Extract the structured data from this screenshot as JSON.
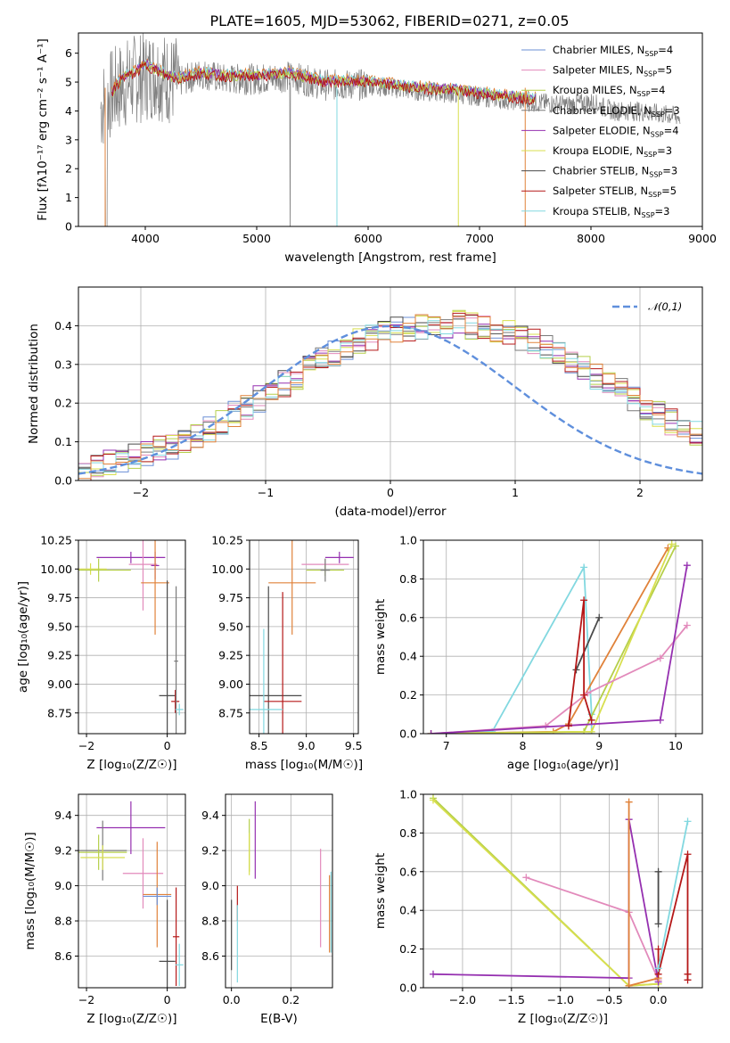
{
  "figure": {
    "title": "PLATE=1605, MJD=53062, FIBERID=0271, z=0.05"
  },
  "colors": {
    "Chabrier MILES": "#6b8fd6",
    "Salpeter MILES": "#e28abb",
    "Kroupa MILES": "#b5cf4a",
    "Chabrier ELODIE": "#7a7a7a",
    "Salpeter ELODIE": "#9530b0",
    "Kroupa ELODIE": "#d8df4f",
    "Chabrier STELIB": "#4a4a4a",
    "Salpeter STELIB": "#b51818",
    "Kroupa STELIB": "#82d8e0",
    "data": "#808080",
    "model_orange": "#e0823a",
    "gaussian": "#5f8fdc"
  },
  "chart_data": [
    {
      "id": "spectrum",
      "type": "line",
      "xlabel": "wavelength [Angstrom, rest frame]",
      "ylabel": "Flux [fλ10⁻¹⁷ erg cm⁻² s⁻¹ A⁻¹]",
      "xlim": [
        3400,
        9000
      ],
      "ylim": [
        0,
        6.7
      ],
      "xticks": [
        4000,
        5000,
        6000,
        7000,
        8000,
        9000
      ],
      "yticks": [
        0,
        1,
        2,
        3,
        4,
        5,
        6
      ],
      "data_envelope": {
        "x": [
          3600,
          3700,
          3800,
          3900,
          4000,
          4100,
          4200,
          4300,
          4500,
          4700,
          5000,
          5300,
          5600,
          6000,
          6400,
          6800,
          7200,
          7500,
          7800,
          8000,
          8200,
          8400,
          8600,
          8800
        ],
        "y": [
          4.1,
          4.6,
          4.9,
          5.1,
          5.2,
          5.3,
          5.1,
          5.0,
          5.3,
          5.1,
          5.1,
          5.2,
          4.9,
          4.9,
          4.7,
          4.6,
          4.4,
          4.3,
          4.2,
          4.3,
          4.0,
          4.0,
          3.9,
          3.8
        ]
      },
      "model_line": {
        "x": [
          3700,
          3800,
          3900,
          4000,
          4100,
          4200,
          4300,
          4500,
          4700,
          5000,
          5300,
          5600,
          6000,
          6400,
          6800,
          7200,
          7500
        ],
        "y": [
          4.7,
          5.3,
          5.4,
          5.7,
          5.5,
          5.3,
          5.2,
          5.4,
          5.3,
          5.3,
          5.4,
          5.1,
          5.1,
          4.9,
          4.8,
          4.6,
          4.5
        ]
      },
      "legend": [
        {
          "label": "Chabrier MILES, N",
          "sub": "SSP",
          "tail": "=4",
          "series": "Chabrier MILES"
        },
        {
          "label": "Salpeter MILES, N",
          "sub": "SSP",
          "tail": "=5",
          "series": "Salpeter MILES"
        },
        {
          "label": "Kroupa MILES, N",
          "sub": "SSP",
          "tail": "=4",
          "series": "Kroupa MILES"
        },
        {
          "label": "Chabrier ELODIE, N",
          "sub": "SSP",
          "tail": "=3",
          "series": "Chabrier ELODIE"
        },
        {
          "label": "Salpeter ELODIE, N",
          "sub": "SSP",
          "tail": "=4",
          "series": "Salpeter ELODIE"
        },
        {
          "label": "Kroupa ELODIE, N",
          "sub": "SSP",
          "tail": "=3",
          "series": "Kroupa ELODIE"
        },
        {
          "label": "Chabrier STELIB, N",
          "sub": "SSP",
          "tail": "=3",
          "series": "Chabrier STELIB"
        },
        {
          "label": "Salpeter STELIB, N",
          "sub": "SSP",
          "tail": "=5",
          "series": "Salpeter STELIB"
        },
        {
          "label": "Kroupa STELIB, N",
          "sub": "SSP",
          "tail": "=3",
          "series": "Kroupa STELIB"
        }
      ]
    },
    {
      "id": "residuals",
      "type": "line",
      "xlabel": "(data-model)/error",
      "ylabel": "Normed distribution",
      "xlim": [
        -2.5,
        2.5
      ],
      "ylim": [
        0,
        0.5
      ],
      "xticks": [
        -2,
        -1,
        0,
        1,
        2
      ],
      "yticks": [
        0.0,
        0.1,
        0.2,
        0.3,
        0.4
      ],
      "legend_label": "𝒩(0,1)",
      "gaussian": {
        "mean": 0,
        "sigma": 1
      },
      "hist_bins": {
        "start": -2.5,
        "width": 0.1
      },
      "base_series": [
        0.03,
        0.04,
        0.05,
        0.05,
        0.06,
        0.07,
        0.08,
        0.09,
        0.1,
        0.12,
        0.13,
        0.15,
        0.17,
        0.19,
        0.21,
        0.23,
        0.25,
        0.27,
        0.29,
        0.31,
        0.33,
        0.34,
        0.36,
        0.37,
        0.38,
        0.39,
        0.39,
        0.4,
        0.4,
        0.4,
        0.41,
        0.4,
        0.4,
        0.39,
        0.38,
        0.37,
        0.36,
        0.34,
        0.33,
        0.31,
        0.29,
        0.27,
        0.25,
        0.23,
        0.21,
        0.19,
        0.17,
        0.15,
        0.13,
        0.12
      ]
    },
    {
      "id": "age-vs-Z",
      "type": "scatter",
      "xlabel": "Z [log₁₀(Z/Z☉)]",
      "ylabel": "age  [log₁₀(age/yr)]",
      "xlim": [
        -2.2,
        0.45
      ],
      "ylim": [
        8.57,
        10.25
      ],
      "xticks": [
        -2,
        0
      ],
      "yticks": [
        8.75,
        9.0,
        9.25,
        9.5,
        9.75,
        10.0,
        10.25
      ],
      "points": [
        {
          "series": "Salpeter ELODIE",
          "x": -0.9,
          "xerr": 0.85,
          "y": 10.1,
          "yerr": 0.05
        },
        {
          "series": "Kroupa ELODIE",
          "x": -1.9,
          "xerr": 0.4,
          "y": 10.0,
          "yerr": 0.05
        },
        {
          "series": "Kroupa MILES",
          "x": -1.7,
          "xerr": 0.8,
          "y": 9.99,
          "yerr": 0.1
        },
        {
          "series": "Salpeter MILES",
          "x": -0.6,
          "xerr": 0.35,
          "y": 10.04,
          "yerr": 0.4
        },
        {
          "series": "Salpeter ELODIE",
          "x": -0.3,
          "xerr": 0.1,
          "y": 10.03,
          "yerr": 0.12
        },
        {
          "series": "model_orange",
          "x": -0.3,
          "xerr": 0.35,
          "y": 9.88,
          "yerr": 0.45
        },
        {
          "series": "Chabrier STELIB",
          "x": 0.0,
          "xerr": 0.2,
          "y": 8.9,
          "yerr": 1.0
        },
        {
          "series": "Salpeter STELIB",
          "x": 0.2,
          "xerr": 0.1,
          "y": 8.85,
          "yerr": 0.1
        },
        {
          "series": "Chabrier ELODIE",
          "x": 0.22,
          "xerr": 0.05,
          "y": 9.2,
          "yerr": 0.65
        },
        {
          "series": "Kroupa STELIB",
          "x": 0.3,
          "xerr": 0.1,
          "y": 8.78,
          "yerr": 0.05
        }
      ]
    },
    {
      "id": "age-vs-mass",
      "type": "scatter",
      "xlabel": "mass [log₁₀(M/M☉)]",
      "ylabel": "",
      "xlim": [
        8.4,
        9.55
      ],
      "ylim": [
        8.57,
        10.25
      ],
      "xticks": [
        8.5,
        9.0,
        9.5
      ],
      "yticks": [
        8.75,
        9.0,
        9.25,
        9.5,
        9.75,
        10.0,
        10.25
      ],
      "points": [
        {
          "series": "Salpeter ELODIE",
          "x": 9.35,
          "xerr": 0.15,
          "y": 10.1,
          "yerr": 0.05
        },
        {
          "series": "Salpeter MILES",
          "x": 9.2,
          "xerr": 0.25,
          "y": 10.04,
          "yerr": 0.05
        },
        {
          "series": "Kroupa MILES",
          "x": 9.2,
          "xerr": 0.2,
          "y": 9.99,
          "yerr": 0.05
        },
        {
          "series": "Chabrier ELODIE",
          "x": 9.2,
          "xerr": 0.05,
          "y": 9.99,
          "yerr": 0.1
        },
        {
          "series": "model_orange",
          "x": 8.85,
          "xerr": 0.25,
          "y": 9.88,
          "yerr": 0.45
        },
        {
          "series": "Chabrier STELIB",
          "x": 8.6,
          "xerr": 0.35,
          "y": 8.9,
          "yerr": 0.95
        },
        {
          "series": "Salpeter STELIB",
          "x": 8.75,
          "xerr": 0.2,
          "y": 8.85,
          "yerr": 0.95
        },
        {
          "series": "Kroupa STELIB",
          "x": 8.55,
          "xerr": 0.2,
          "y": 8.78,
          "yerr": 0.7
        }
      ]
    },
    {
      "id": "weight-vs-age",
      "type": "line",
      "xlabel": "age  [log₁₀(age/yr)]",
      "ylabel": "mass weight",
      "xlim": [
        6.7,
        10.35
      ],
      "ylim": [
        0,
        1
      ],
      "xticks": [
        7,
        8,
        9,
        10
      ],
      "yticks": [
        0.0,
        0.2,
        0.4,
        0.6,
        0.8,
        1.0
      ],
      "series": [
        {
          "series": "Kroupa STELIB",
          "x": [
            6.8,
            7.6,
            8.8,
            8.9,
            8.9
          ],
          "y": [
            0.0,
            0.01,
            0.86,
            0.1,
            0.0
          ]
        },
        {
          "series": "model_orange",
          "x": [
            6.8,
            8.4,
            8.6,
            9.9
          ],
          "y": [
            0.0,
            0.01,
            0.05,
            0.96
          ]
        },
        {
          "series": "Kroupa MILES",
          "x": [
            6.8,
            8.8,
            10.0
          ],
          "y": [
            0.0,
            0.01,
            0.97
          ]
        },
        {
          "series": "Kroupa ELODIE",
          "x": [
            6.8,
            8.9,
            9.95
          ],
          "y": [
            0.0,
            0.01,
            0.98
          ]
        },
        {
          "series": "Salpeter MILES",
          "x": [
            6.8,
            8.3,
            8.85,
            9.8,
            10.15
          ],
          "y": [
            0.0,
            0.04,
            0.21,
            0.39,
            0.56
          ]
        },
        {
          "series": "Salpeter ELODIE",
          "x": [
            6.8,
            9.8,
            10.15
          ],
          "y": [
            0.0,
            0.07,
            0.87
          ]
        },
        {
          "series": "Chabrier STELIB",
          "x": [
            8.7,
            9.0
          ],
          "y": [
            0.33,
            0.6
          ]
        },
        {
          "series": "Salpeter STELIB",
          "x": [
            8.6,
            8.8,
            8.8,
            8.9
          ],
          "y": [
            0.04,
            0.69,
            0.2,
            0.07
          ]
        }
      ]
    },
    {
      "id": "mass-vs-Z",
      "type": "scatter",
      "xlabel": "Z [log₁₀(Z/Z☉)]",
      "ylabel": "mass [log₁₀(M/M☉)]",
      "xlim": [
        -2.2,
        0.45
      ],
      "ylim": [
        8.42,
        9.52
      ],
      "xticks": [
        -2,
        0
      ],
      "yticks": [
        8.6,
        8.8,
        9.0,
        9.2,
        9.4
      ],
      "points": [
        {
          "series": "Salpeter ELODIE",
          "x": -0.9,
          "xerr": 0.85,
          "y": 9.33,
          "yerr": 0.15
        },
        {
          "series": "Chabrier ELODIE",
          "x": -1.6,
          "xerr": 0.6,
          "y": 9.2,
          "yerr": 0.17
        },
        {
          "series": "Kroupa MILES",
          "x": -1.7,
          "xerr": 0.7,
          "y": 9.19,
          "yerr": 0.1
        },
        {
          "series": "Kroupa ELODIE",
          "x": -1.6,
          "xerr": 0.55,
          "y": 9.16,
          "yerr": 0.07
        },
        {
          "series": "Salpeter MILES",
          "x": -0.6,
          "xerr": 0.5,
          "y": 9.07,
          "yerr": 0.2
        },
        {
          "series": "model_orange",
          "x": -0.25,
          "xerr": 0.35,
          "y": 8.95,
          "yerr": 0.3
        },
        {
          "series": "Chabrier MILES",
          "x": -0.25,
          "xerr": 0.35,
          "y": 8.94,
          "yerr": 0.05
        },
        {
          "series": "Chabrier STELIB",
          "x": 0.0,
          "xerr": 0.2,
          "y": 8.57,
          "yerr": 0.35
        },
        {
          "series": "Salpeter STELIB",
          "x": 0.22,
          "xerr": 0.08,
          "y": 8.71,
          "yerr": 0.28
        },
        {
          "series": "Kroupa STELIB",
          "x": 0.3,
          "xerr": 0.1,
          "y": 8.55,
          "yerr": 0.12
        }
      ]
    },
    {
      "id": "mass-vs-EBV",
      "type": "scatter",
      "xlabel": "E(B-V)",
      "ylabel": "",
      "xlim": [
        -0.02,
        0.34
      ],
      "ylim": [
        8.42,
        9.52
      ],
      "xticks": [
        0.0,
        0.2
      ],
      "yticks": [
        8.6,
        8.8,
        9.0,
        9.2,
        9.4
      ],
      "points": [
        {
          "series": "Salpeter ELODIE",
          "x": 0.08,
          "xerr": 0.0,
          "y": 9.26,
          "yerr": 0.22
        },
        {
          "series": "Kroupa MILES",
          "x": 0.06,
          "xerr": 0.0,
          "y": 9.23,
          "yerr": 0.15
        },
        {
          "series": "Kroupa ELODIE",
          "x": 0.06,
          "xerr": 0.0,
          "y": 9.18,
          "yerr": 0.12
        },
        {
          "series": "Chabrier STELIB",
          "x": 0.0,
          "xerr": 0.0,
          "y": 8.72,
          "yerr": 0.2
        },
        {
          "series": "Salpeter STELIB",
          "x": 0.02,
          "xerr": 0.0,
          "y": 8.9,
          "yerr": 0.1
        },
        {
          "series": "Kroupa STELIB",
          "x": 0.02,
          "xerr": 0.0,
          "y": 8.67,
          "yerr": 0.22
        },
        {
          "series": "Salpeter MILES",
          "x": 0.3,
          "xerr": 0.0,
          "y": 8.93,
          "yerr": 0.28
        },
        {
          "series": "model_orange",
          "x": 0.33,
          "xerr": 0.0,
          "y": 8.84,
          "yerr": 0.22
        },
        {
          "series": "Kroupa STELIB",
          "x": 0.335,
          "xerr": 0.0,
          "y": 8.85,
          "yerr": 0.23
        }
      ]
    },
    {
      "id": "weight-vs-Z",
      "type": "line",
      "xlabel": "Z [log₁₀(Z/Z☉)]",
      "ylabel": "mass weight",
      "xlim": [
        -2.4,
        0.45
      ],
      "ylim": [
        0,
        1
      ],
      "xticks": [
        -2.0,
        -1.5,
        -1.0,
        -0.5,
        0.0
      ],
      "yticks": [
        0.0,
        0.2,
        0.4,
        0.6,
        0.8,
        1.0
      ],
      "series": [
        {
          "series": "Kroupa MILES",
          "x": [
            -2.3,
            -0.3,
            0.0
          ],
          "y": [
            0.98,
            0.01,
            0.02
          ]
        },
        {
          "series": "Kroupa ELODIE",
          "x": [
            -2.3,
            -0.3,
            0.0
          ],
          "y": [
            0.97,
            0.01,
            0.02
          ]
        },
        {
          "series": "Salpeter MILES",
          "x": [
            -1.35,
            -0.3,
            0.0
          ],
          "y": [
            0.57,
            0.39,
            0.04
          ]
        },
        {
          "series": "Salpeter ELODIE",
          "x": [
            -2.3,
            -0.3,
            -0.3,
            0.0
          ],
          "y": [
            0.07,
            0.05,
            0.87,
            0.03
          ]
        },
        {
          "series": "model_orange",
          "x": [
            -0.3,
            -0.3,
            0.0
          ],
          "y": [
            0.96,
            0.01,
            0.05
          ]
        },
        {
          "series": "Chabrier STELIB",
          "x": [
            0.0,
            0.0
          ],
          "y": [
            0.33,
            0.6
          ]
        },
        {
          "series": "Salpeter STELIB",
          "x": [
            0.0,
            0.0,
            0.3,
            0.3,
            0.3
          ],
          "y": [
            0.2,
            0.07,
            0.69,
            0.07,
            0.04
          ]
        },
        {
          "series": "Kroupa STELIB",
          "x": [
            0.0,
            0.3
          ],
          "y": [
            0.1,
            0.86
          ]
        }
      ]
    }
  ]
}
